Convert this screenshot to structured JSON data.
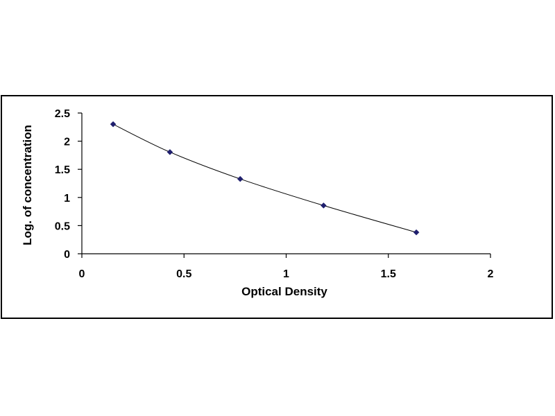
{
  "chart_data": {
    "type": "scatter",
    "title": "",
    "xlabel": "Optical Density",
    "ylabel": "Log. of concentration",
    "xlim": [
      0,
      2
    ],
    "ylim": [
      0,
      2.5
    ],
    "x_ticks": [
      "0",
      "0.5",
      "1",
      "1.5",
      "2"
    ],
    "y_ticks": [
      "0",
      "0.5",
      "1",
      "1.5",
      "2",
      "2.5"
    ],
    "grid": false,
    "legend": "none",
    "trendline": "smooth curve through points",
    "series": [
      {
        "x": [
          0.153,
          0.431,
          0.775,
          1.183,
          1.637
        ],
        "y": [
          2.301,
          1.806,
          1.329,
          0.857,
          0.38
        ],
        "marker": "diamond",
        "color": "#1f1f6e",
        "line_color": "#000000"
      }
    ]
  }
}
